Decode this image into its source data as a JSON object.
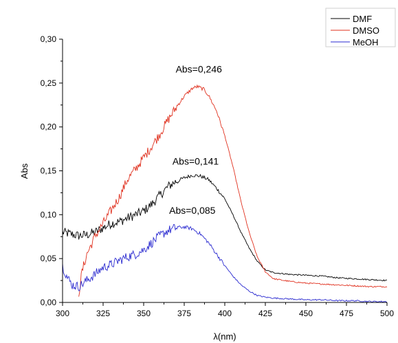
{
  "chart_data": {
    "type": "line",
    "title": "",
    "xlabel": "λ(nm)",
    "ylabel": "Abs",
    "xlim": [
      300,
      500
    ],
    "ylim": [
      0.0,
      0.3
    ],
    "x_ticks": [
      300,
      325,
      350,
      375,
      400,
      425,
      450,
      475,
      500
    ],
    "x_tick_labels": [
      "300",
      "325",
      "350",
      "375",
      "400",
      "425",
      "450",
      "475",
      "500"
    ],
    "y_ticks": [
      0.0,
      0.05,
      0.1,
      0.15,
      0.2,
      0.25,
      0.3
    ],
    "y_tick_labels": [
      "0,00",
      "0,05",
      "0,10",
      "0,15",
      "0,20",
      "0,25",
      "0,30"
    ],
    "grid": false,
    "legend_position": "top-right",
    "series": [
      {
        "name": "DMF",
        "color": "#000000",
        "points": [
          [
            300,
            0.08
          ],
          [
            305,
            0.078
          ],
          [
            310,
            0.076
          ],
          [
            315,
            0.077
          ],
          [
            320,
            0.08
          ],
          [
            325,
            0.085
          ],
          [
            330,
            0.09
          ],
          [
            335,
            0.092
          ],
          [
            340,
            0.096
          ],
          [
            345,
            0.1
          ],
          [
            350,
            0.104
          ],
          [
            355,
            0.112
          ],
          [
            360,
            0.122
          ],
          [
            365,
            0.132
          ],
          [
            370,
            0.138
          ],
          [
            375,
            0.142
          ],
          [
            380,
            0.145
          ],
          [
            385,
            0.144
          ],
          [
            390,
            0.14
          ],
          [
            395,
            0.13
          ],
          [
            400,
            0.118
          ],
          [
            405,
            0.1
          ],
          [
            410,
            0.08
          ],
          [
            415,
            0.062
          ],
          [
            420,
            0.047
          ],
          [
            425,
            0.037
          ],
          [
            430,
            0.034
          ],
          [
            440,
            0.032
          ],
          [
            450,
            0.031
          ],
          [
            460,
            0.03
          ],
          [
            470,
            0.028
          ],
          [
            480,
            0.027
          ],
          [
            490,
            0.026
          ],
          [
            500,
            0.025
          ]
        ]
      },
      {
        "name": "DMSO",
        "color": "#e0301e",
        "points": [
          [
            310,
            0.01
          ],
          [
            312,
            0.035
          ],
          [
            315,
            0.055
          ],
          [
            320,
            0.075
          ],
          [
            325,
            0.09
          ],
          [
            330,
            0.105
          ],
          [
            335,
            0.12
          ],
          [
            340,
            0.14
          ],
          [
            345,
            0.152
          ],
          [
            350,
            0.165
          ],
          [
            355,
            0.178
          ],
          [
            360,
            0.192
          ],
          [
            365,
            0.208
          ],
          [
            370,
            0.222
          ],
          [
            375,
            0.235
          ],
          [
            380,
            0.244
          ],
          [
            383,
            0.246
          ],
          [
            387,
            0.243
          ],
          [
            390,
            0.236
          ],
          [
            395,
            0.218
          ],
          [
            400,
            0.19
          ],
          [
            405,
            0.155
          ],
          [
            410,
            0.115
          ],
          [
            415,
            0.08
          ],
          [
            420,
            0.052
          ],
          [
            425,
            0.035
          ],
          [
            430,
            0.027
          ],
          [
            440,
            0.024
          ],
          [
            450,
            0.022
          ],
          [
            460,
            0.021
          ],
          [
            470,
            0.02
          ],
          [
            480,
            0.019
          ],
          [
            490,
            0.018
          ],
          [
            500,
            0.018
          ]
        ]
      },
      {
        "name": "MeOH",
        "color": "#2a2ad0",
        "points": [
          [
            300,
            0.042
          ],
          [
            303,
            0.028
          ],
          [
            306,
            0.02
          ],
          [
            310,
            0.018
          ],
          [
            315,
            0.025
          ],
          [
            320,
            0.032
          ],
          [
            325,
            0.04
          ],
          [
            330,
            0.043
          ],
          [
            335,
            0.048
          ],
          [
            340,
            0.052
          ],
          [
            345,
            0.055
          ],
          [
            350,
            0.06
          ],
          [
            355,
            0.068
          ],
          [
            360,
            0.076
          ],
          [
            365,
            0.082
          ],
          [
            370,
            0.085
          ],
          [
            375,
            0.086
          ],
          [
            380,
            0.084
          ],
          [
            385,
            0.078
          ],
          [
            390,
            0.068
          ],
          [
            395,
            0.055
          ],
          [
            400,
            0.042
          ],
          [
            405,
            0.03
          ],
          [
            410,
            0.02
          ],
          [
            415,
            0.013
          ],
          [
            420,
            0.008
          ],
          [
            425,
            0.006
          ],
          [
            430,
            0.005
          ],
          [
            440,
            0.004
          ],
          [
            450,
            0.003
          ],
          [
            460,
            0.003
          ],
          [
            470,
            0.002
          ],
          [
            480,
            0.002
          ],
          [
            490,
            0.001
          ],
          [
            500,
            0.001
          ]
        ]
      }
    ],
    "annotations": [
      {
        "text": "Abs=0,246",
        "x": 384,
        "y": 0.262
      },
      {
        "text": "Abs=0,141",
        "x": 382,
        "y": 0.157
      },
      {
        "text": "Abs=0,085",
        "x": 380,
        "y": 0.101
      }
    ]
  }
}
